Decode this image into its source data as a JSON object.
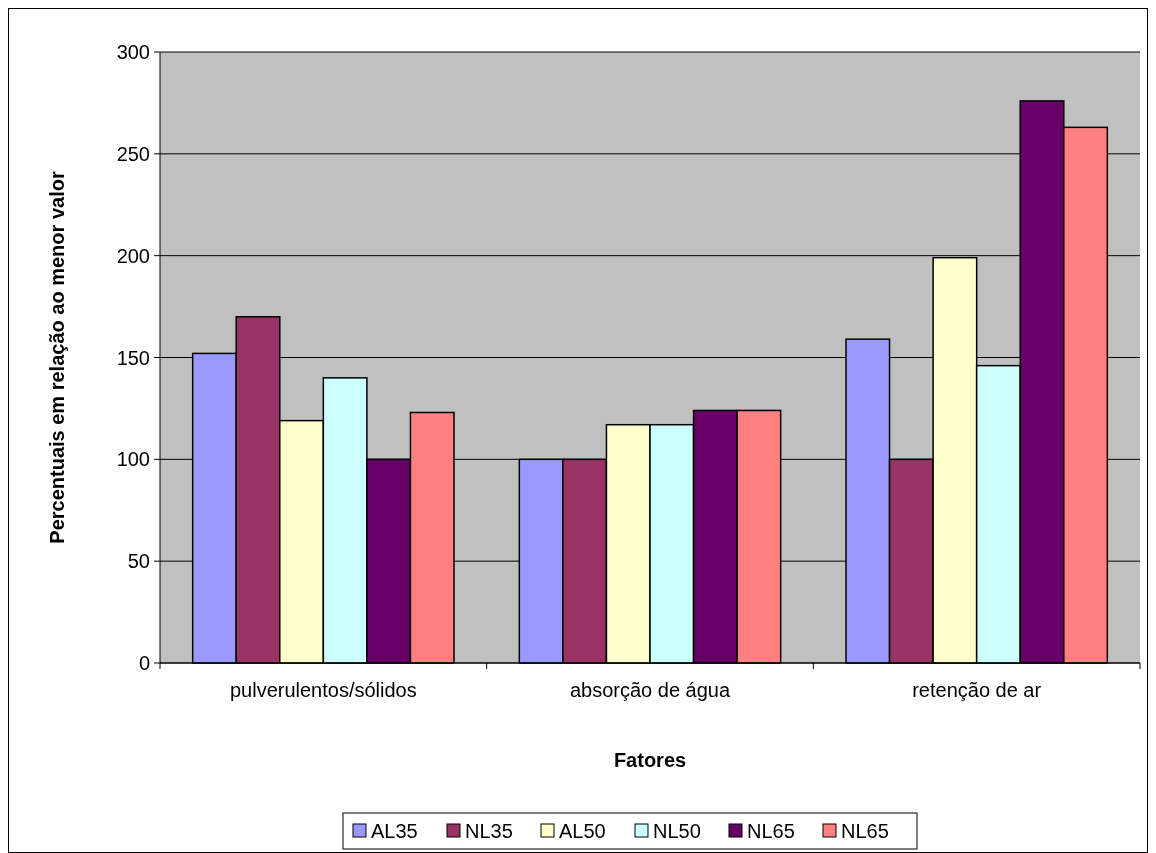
{
  "chart_data": {
    "type": "bar",
    "xlabel": "Fatores",
    "ylabel": "Percentuais em relação ao menor valor",
    "categories": [
      "pulverulentos/sólidos",
      "absorção de água",
      "retenção de ar"
    ],
    "series": [
      {
        "name": "AL35",
        "color": "#9999ff",
        "values": [
          152,
          100,
          159
        ]
      },
      {
        "name": "NL35",
        "color": "#993366",
        "values": [
          170,
          100,
          100
        ]
      },
      {
        "name": "AL50",
        "color": "#ffffcc",
        "values": [
          119,
          117,
          199
        ]
      },
      {
        "name": "NL50",
        "color": "#ccffff",
        "values": [
          140,
          117,
          146
        ]
      },
      {
        "name": "NL65",
        "color": "#660066",
        "values": [
          100,
          124,
          276
        ]
      },
      {
        "name": "NL65",
        "color": "#ff8080",
        "values": [
          123,
          124,
          263
        ]
      }
    ],
    "ylim": [
      0,
      300
    ],
    "yticks": [
      0,
      50,
      100,
      150,
      200,
      250,
      300
    ],
    "grid": "y",
    "legend": "bottom"
  }
}
